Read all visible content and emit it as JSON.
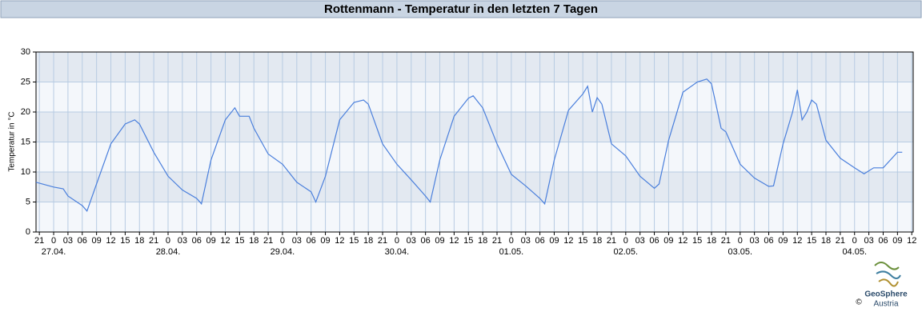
{
  "chart_data": {
    "type": "line",
    "title": "Rottenmann - Temperatur in den letzten 7 Tagen",
    "y_label": "Temperatur in °C",
    "logo": {
      "name": "GeoSphere",
      "sub": "Austria",
      "copyright": "©"
    },
    "x": [
      -3.7,
      0,
      2,
      3,
      6,
      7,
      9,
      12,
      15,
      17,
      18,
      21,
      24,
      27,
      30,
      31,
      33,
      36,
      38,
      39,
      41,
      42,
      45,
      48,
      51,
      54,
      55,
      57,
      60,
      63,
      65,
      66,
      69,
      72,
      75,
      78,
      79,
      81,
      84,
      87,
      88,
      90,
      93,
      96,
      99,
      102,
      103,
      105,
      108,
      111,
      112,
      113,
      114,
      115,
      117,
      120,
      123,
      126,
      127,
      129,
      132,
      135,
      137,
      138,
      140,
      141,
      144,
      147,
      150,
      151,
      153,
      155,
      156,
      157,
      158,
      159,
      160,
      162,
      165,
      168,
      170,
      172,
      174,
      177,
      178
    ],
    "series": [
      {
        "name": "Temperatur",
        "color": "#4a7fdc",
        "values": [
          8.3,
          7.5,
          7.2,
          6,
          4.4,
          3.5,
          8,
          14.7,
          18,
          18.7,
          18,
          13.3,
          9.3,
          7,
          5.6,
          4.7,
          12,
          18.7,
          20.7,
          19.3,
          19.3,
          17.3,
          13,
          11.3,
          8.3,
          6.7,
          5,
          9.3,
          18.7,
          21.6,
          22,
          21.3,
          14.7,
          11.3,
          8.7,
          6,
          5,
          12,
          19.3,
          22.3,
          22.7,
          20.7,
          14.7,
          9.6,
          7.7,
          5.6,
          4.7,
          12,
          20.3,
          23,
          24.3,
          20,
          22.4,
          21.3,
          14.7,
          12.7,
          9.3,
          7.3,
          8,
          15.3,
          23.3,
          25,
          25.5,
          24.7,
          17.3,
          16.7,
          11.3,
          9,
          7.6,
          7.7,
          14.7,
          20,
          23.7,
          18.7,
          20,
          22,
          21.3,
          15.3,
          12.3,
          10.7,
          9.7,
          10.7,
          10.7,
          13.3,
          13.3
        ]
      }
    ],
    "xlim": [
      -3.7,
      180.3
    ],
    "xticks": [
      {
        "value": -3,
        "label": "21"
      },
      0,
      {
        "value": 3,
        "label": "03"
      },
      {
        "value": 6,
        "label": "06"
      },
      {
        "value": 9,
        "label": "09"
      },
      12,
      15,
      18,
      21,
      {
        "value": 24,
        "label": "0"
      },
      {
        "value": 27,
        "label": "03"
      },
      {
        "value": 30,
        "label": "06"
      },
      {
        "value": 33,
        "label": "09"
      },
      {
        "value": 36,
        "label": "12"
      },
      {
        "value": 39,
        "label": "15"
      },
      {
        "value": 42,
        "label": "18"
      },
      {
        "value": 45,
        "label": "21"
      },
      {
        "value": 48,
        "label": "0"
      },
      {
        "value": 51,
        "label": "03"
      },
      {
        "value": 54,
        "label": "06"
      },
      {
        "value": 57,
        "label": "09"
      },
      {
        "value": 60,
        "label": "12"
      },
      {
        "value": 63,
        "label": "15"
      },
      {
        "value": 66,
        "label": "18"
      },
      {
        "value": 69,
        "label": "21"
      },
      {
        "value": 72,
        "label": "0"
      },
      {
        "value": 75,
        "label": "03"
      },
      {
        "value": 78,
        "label": "06"
      },
      {
        "value": 81,
        "label": "09"
      },
      {
        "value": 84,
        "label": "12"
      },
      {
        "value": 87,
        "label": "15"
      },
      {
        "value": 90,
        "label": "18"
      },
      {
        "value": 93,
        "label": "21"
      },
      {
        "value": 96,
        "label": "0"
      },
      {
        "value": 99,
        "label": "03"
      },
      {
        "value": 102,
        "label": "06"
      },
      {
        "value": 105,
        "label": "09"
      },
      {
        "value": 108,
        "label": "12"
      },
      {
        "value": 111,
        "label": "15"
      },
      {
        "value": 114,
        "label": "18"
      },
      {
        "value": 117,
        "label": "21"
      },
      {
        "value": 120,
        "label": "0"
      },
      {
        "value": 123,
        "label": "03"
      },
      {
        "value": 126,
        "label": "06"
      },
      {
        "value": 129,
        "label": "09"
      },
      {
        "value": 132,
        "label": "12"
      },
      {
        "value": 135,
        "label": "15"
      },
      {
        "value": 138,
        "label": "18"
      },
      {
        "value": 141,
        "label": "21"
      },
      {
        "value": 144,
        "label": "0"
      },
      {
        "value": 147,
        "label": "03"
      },
      {
        "value": 150,
        "label": "06"
      },
      {
        "value": 153,
        "label": "09"
      },
      {
        "value": 156,
        "label": "12"
      },
      {
        "value": 159,
        "label": "15"
      },
      {
        "value": 162,
        "label": "18"
      },
      {
        "value": 165,
        "label": "21"
      },
      {
        "value": 168,
        "label": "0"
      },
      {
        "value": 171,
        "label": "03"
      },
      {
        "value": 174,
        "label": "06"
      },
      {
        "value": 177,
        "label": "09"
      },
      {
        "value": 180,
        "label": "12"
      }
    ],
    "xdate_ticks": [
      {
        "value": 0,
        "label": "27.04."
      },
      {
        "value": 24,
        "label": "28.04."
      },
      {
        "value": 48,
        "label": "29.04."
      },
      {
        "value": 72,
        "label": "30.04."
      },
      {
        "value": 96,
        "label": "01.05."
      },
      {
        "value": 120,
        "label": "02.05."
      },
      {
        "value": 144,
        "label": "03.05."
      },
      {
        "value": 168,
        "label": "04.05."
      }
    ],
    "ylim": [
      0,
      30
    ],
    "yticks": [
      0,
      5,
      10,
      15,
      20,
      25,
      30
    ],
    "grid": true
  }
}
